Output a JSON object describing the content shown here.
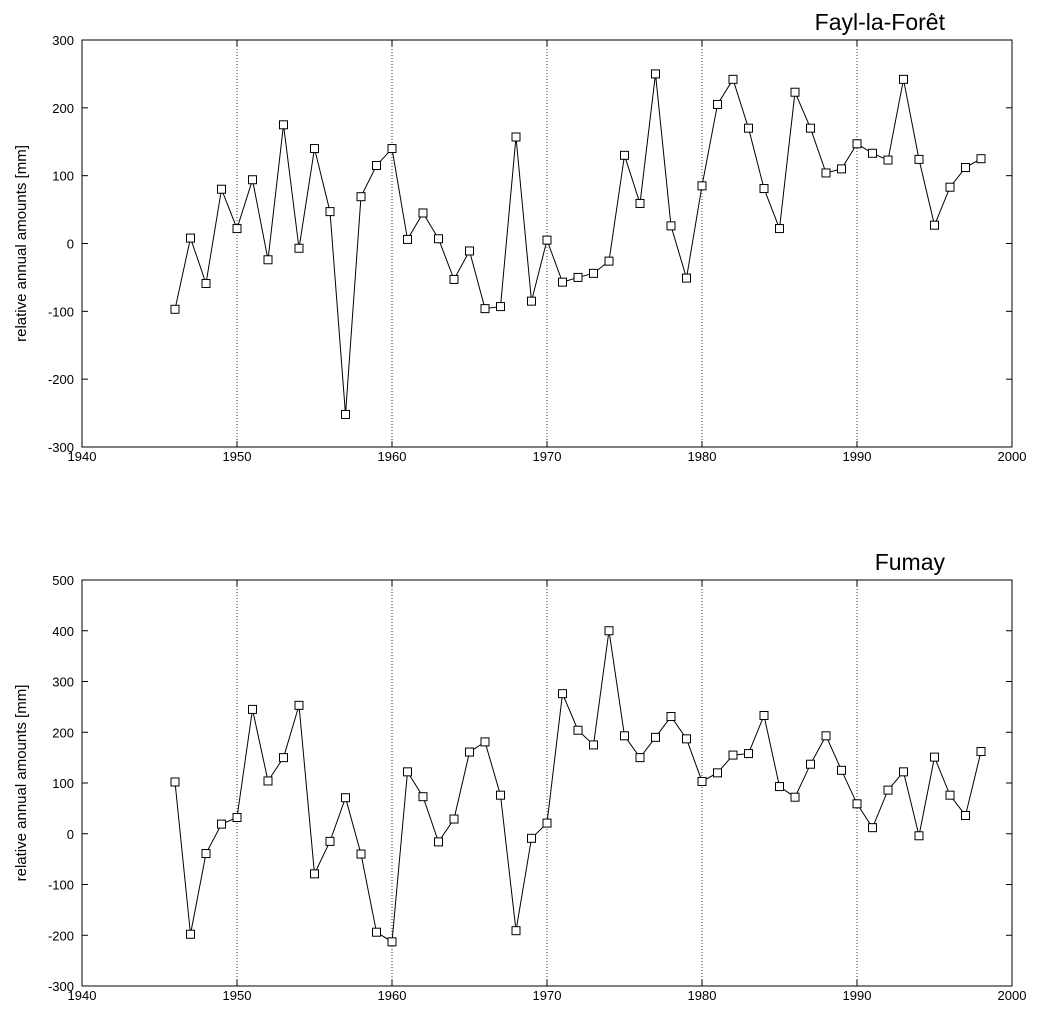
{
  "chart_data": [
    {
      "type": "line",
      "title": "Fayl-la-Forêt",
      "xlabel": "",
      "ylabel": "relative annual amounts [mm]",
      "xlim": [
        1940,
        2000
      ],
      "ylim": [
        -300,
        300
      ],
      "xticks": [
        1940,
        1950,
        1960,
        1970,
        1980,
        1990,
        2000
      ],
      "yticks": [
        -300,
        -200,
        -100,
        0,
        100,
        200,
        300
      ],
      "vertical_dotted_lines": [
        1950,
        1960,
        1970,
        1980,
        1990
      ],
      "marker": "square",
      "grid": false,
      "series": [
        {
          "x": [
            1946,
            1947,
            1948,
            1949,
            1950,
            1951,
            1952,
            1953,
            1954,
            1955,
            1956,
            1957,
            1958,
            1959,
            1960,
            1961,
            1962,
            1963,
            1964,
            1965,
            1966,
            1967,
            1968,
            1969,
            1970,
            1971,
            1972,
            1973,
            1974,
            1975,
            1976,
            1977,
            1978,
            1979,
            1980,
            1981,
            1982,
            1983,
            1984,
            1985,
            1986,
            1987,
            1988,
            1989,
            1990,
            1991,
            1992,
            1993,
            1994,
            1995,
            1996,
            1997,
            1998
          ],
          "values": [
            -97,
            8,
            -59,
            80,
            22,
            94,
            -24,
            175,
            -7,
            140,
            47,
            -252,
            69,
            115,
            140,
            6,
            45,
            7,
            -53,
            -11,
            -96,
            -93,
            157,
            -85,
            5,
            -57,
            -50,
            -44,
            -26,
            130,
            59,
            250,
            26,
            -51,
            85,
            205,
            242,
            170,
            81,
            22,
            223,
            170,
            104,
            110,
            147,
            133,
            123,
            242,
            124,
            27,
            83,
            112,
            125
          ],
          "color": "#000000"
        }
      ]
    },
    {
      "type": "line",
      "title": "Fumay",
      "xlabel": "",
      "ylabel": "relative annual amounts [mm]",
      "xlim": [
        1940,
        2000
      ],
      "ylim": [
        -300,
        500
      ],
      "xticks": [
        1940,
        1950,
        1960,
        1970,
        1980,
        1990,
        2000
      ],
      "yticks": [
        -300,
        -200,
        -100,
        0,
        100,
        200,
        300,
        400,
        500
      ],
      "vertical_dotted_lines": [
        1950,
        1960,
        1970,
        1980,
        1990
      ],
      "marker": "square",
      "grid": false,
      "series": [
        {
          "x": [
            1946,
            1947,
            1948,
            1949,
            1950,
            1951,
            1952,
            1953,
            1954,
            1955,
            1956,
            1957,
            1958,
            1959,
            1960,
            1961,
            1962,
            1963,
            1964,
            1965,
            1966,
            1967,
            1968,
            1969,
            1970,
            1971,
            1972,
            1973,
            1974,
            1975,
            1976,
            1977,
            1978,
            1979,
            1980,
            1981,
            1982,
            1983,
            1984,
            1985,
            1986,
            1987,
            1988,
            1989,
            1990,
            1991,
            1992,
            1993,
            1994,
            1995,
            1996,
            1997,
            1998
          ],
          "values": [
            102,
            -198,
            -39,
            19,
            32,
            245,
            104,
            150,
            253,
            -79,
            -15,
            71,
            -40,
            -194,
            -213,
            122,
            73,
            -16,
            29,
            161,
            181,
            76,
            -191,
            -9,
            21,
            276,
            204,
            175,
            400,
            193,
            150,
            190,
            231,
            187,
            103,
            120,
            155,
            158,
            233,
            93,
            72,
            137,
            193,
            125,
            59,
            12,
            86,
            122,
            -4,
            151,
            76,
            36,
            162
          ],
          "color": "#000000"
        }
      ]
    }
  ]
}
